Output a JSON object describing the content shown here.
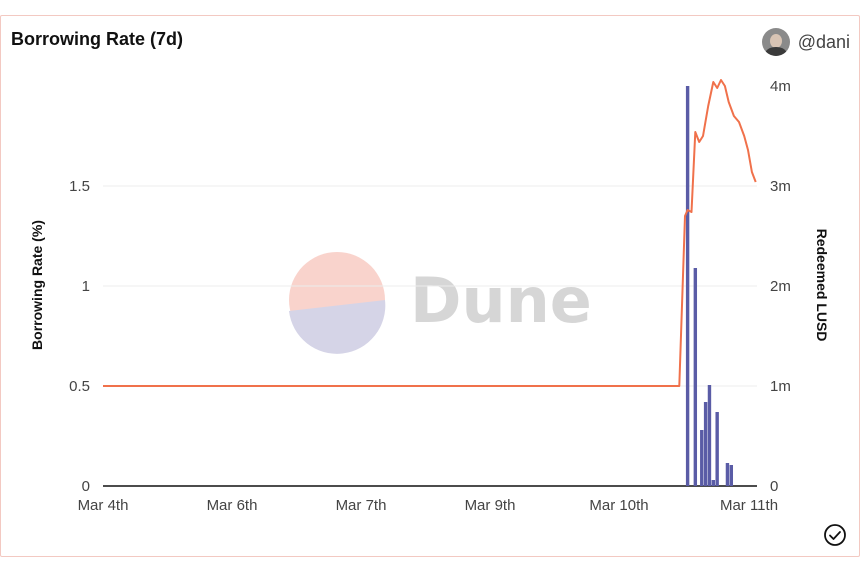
{
  "header": {
    "title": "Borrowing Rate (7d)",
    "username": "@dani"
  },
  "watermark": {
    "text": "Dune"
  },
  "icons": {
    "avatar": "avatar-icon",
    "check": "check-circle-icon"
  },
  "colors": {
    "line": "#f0714b",
    "bar": "#5a5ca6",
    "grid": "#ececec"
  },
  "chart_data": {
    "type": "bar+line",
    "title": "Borrowing Rate (7d)",
    "x_label": "",
    "y_left_label": "Borrowing Rate (%)",
    "y_right_label": "Redeemed LUSD",
    "x_range": [
      3.0,
      11.0
    ],
    "y_left_range": [
      0,
      2.0
    ],
    "y_right_range": [
      0,
      4000000
    ],
    "x_ticks": [
      {
        "value": 3.0,
        "label": "Mar 4th"
      },
      {
        "value": 4.0,
        "label": "Mar 6th"
      },
      {
        "value": 5.0,
        "label": "Mar 7th"
      },
      {
        "value": 6.0,
        "label": "Mar 9th"
      },
      {
        "value": 7.0,
        "label": "Mar 10th"
      },
      {
        "value": 8.0,
        "label": "Mar 11th"
      }
    ],
    "y_left_ticks": [
      {
        "value": 0,
        "label": "0"
      },
      {
        "value": 0.5,
        "label": "0.5"
      },
      {
        "value": 1,
        "label": "1"
      },
      {
        "value": 1.5,
        "label": "1.5"
      }
    ],
    "y_right_ticks": [
      {
        "value": 0,
        "label": "0"
      },
      {
        "value": 1000000,
        "label": "1m"
      },
      {
        "value": 2000000,
        "label": "2m"
      },
      {
        "value": 3000000,
        "label": "3m"
      },
      {
        "value": 4000000,
        "label": "4m"
      }
    ],
    "grid": true,
    "series": [
      {
        "name": "Borrowing Rate (%)",
        "kind": "line",
        "axis": "left",
        "points": [
          [
            3.0,
            0.5
          ],
          [
            7.485,
            0.5
          ],
          [
            7.53,
            1.35
          ],
          [
            7.55,
            1.38
          ],
          [
            7.58,
            1.37
          ],
          [
            7.61,
            1.77
          ],
          [
            7.64,
            1.72
          ],
          [
            7.67,
            1.75
          ],
          [
            7.71,
            1.9
          ],
          [
            7.75,
            2.02
          ],
          [
            7.78,
            1.99
          ],
          [
            7.81,
            2.03
          ],
          [
            7.84,
            2.0
          ],
          [
            7.87,
            1.92
          ],
          [
            7.91,
            1.85
          ],
          [
            7.95,
            1.82
          ],
          [
            7.99,
            1.75
          ],
          [
            8.02,
            1.68
          ],
          [
            8.05,
            1.57
          ],
          [
            8.08,
            1.52
          ]
        ]
      },
      {
        "name": "Redeemed LUSD",
        "kind": "bar",
        "axis": "right",
        "points": [
          [
            7.55,
            4000000
          ],
          [
            7.61,
            2180000
          ],
          [
            7.66,
            560000
          ],
          [
            7.69,
            840000
          ],
          [
            7.72,
            1010000
          ],
          [
            7.75,
            60000
          ],
          [
            7.78,
            740000
          ],
          [
            7.86,
            230000
          ],
          [
            7.89,
            210000
          ]
        ]
      }
    ]
  }
}
